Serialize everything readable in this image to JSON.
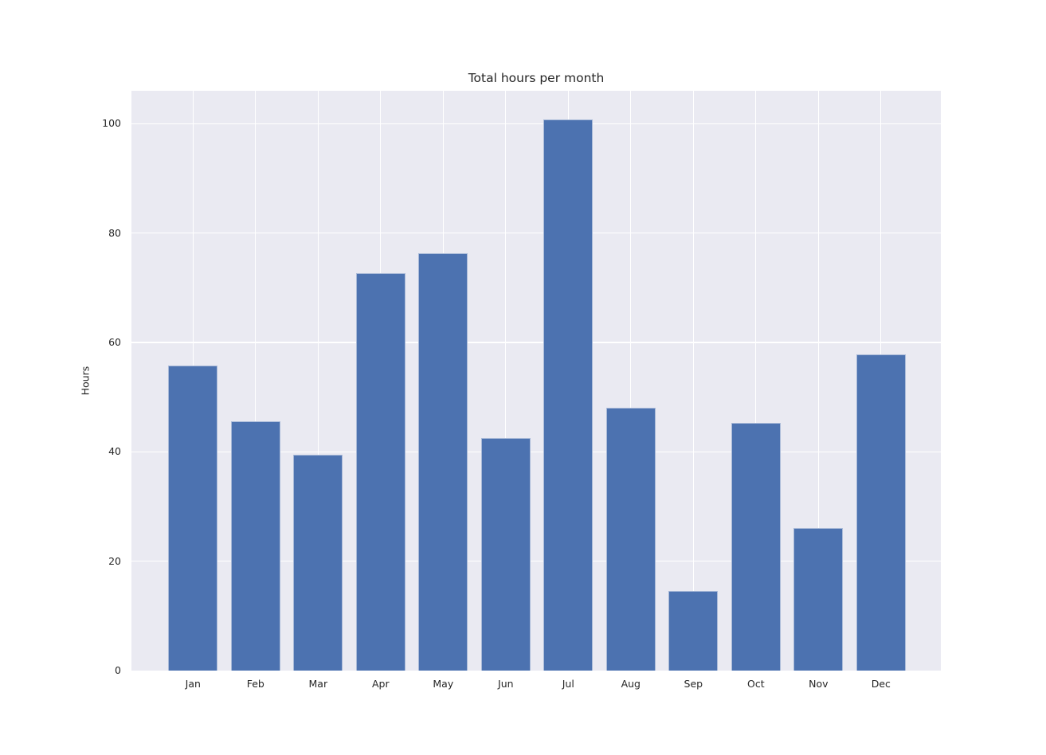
{
  "chart_data": {
    "type": "bar",
    "title": "Total hours per month",
    "ylabel": "Hours",
    "xlabel": "",
    "categories": [
      "Jan",
      "Feb",
      "Mar",
      "Apr",
      "May",
      "Jun",
      "Jul",
      "Aug",
      "Sep",
      "Oct",
      "Nov",
      "Dec"
    ],
    "values": [
      55.8,
      45.6,
      39.4,
      72.7,
      76.3,
      42.5,
      100.7,
      48.1,
      14.6,
      45.3,
      26.0,
      57.8
    ],
    "yticks": [
      0,
      20,
      40,
      60,
      80,
      100
    ],
    "ylim": [
      0,
      106
    ],
    "grid": true,
    "legend_position": "none",
    "colors": {
      "bar": "#4c72b0",
      "bar_edge": "#a9bad8",
      "plot_background": "#eaeaf2",
      "gridline": "#ffffff",
      "text": "#262626",
      "figure_background": "#ffffff"
    }
  }
}
